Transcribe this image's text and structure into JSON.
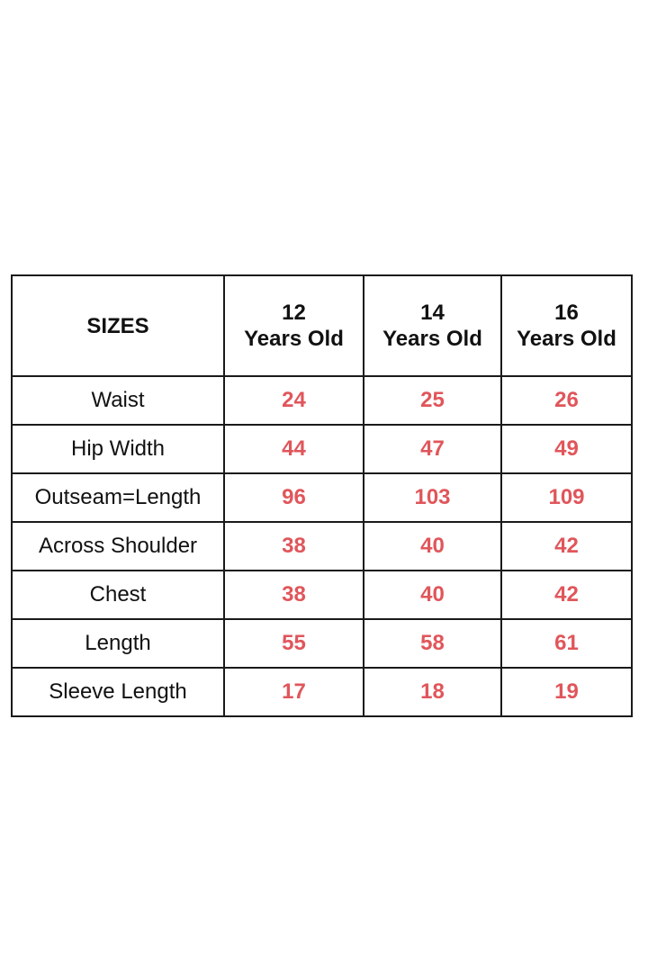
{
  "value_color": "#e0565b",
  "header": {
    "corner": "SIZES",
    "columns": [
      {
        "age": "12",
        "unit": "Years Old"
      },
      {
        "age": "14",
        "unit": "Years Old"
      },
      {
        "age": "16",
        "unit": "Years Old"
      }
    ]
  },
  "rows": [
    {
      "label": "Waist",
      "values": [
        "24",
        "25",
        "26"
      ]
    },
    {
      "label": "Hip Width",
      "values": [
        "44",
        "47",
        "49"
      ]
    },
    {
      "label": "Outseam=Length",
      "values": [
        "96",
        "103",
        "109"
      ]
    },
    {
      "label": "Across Shoulder",
      "values": [
        "38",
        "40",
        "42"
      ]
    },
    {
      "label": "Chest",
      "values": [
        "38",
        "40",
        "42"
      ]
    },
    {
      "label": "Length",
      "values": [
        "55",
        "58",
        "61"
      ]
    },
    {
      "label": "Sleeve Length",
      "values": [
        "17",
        "18",
        "19"
      ]
    }
  ]
}
